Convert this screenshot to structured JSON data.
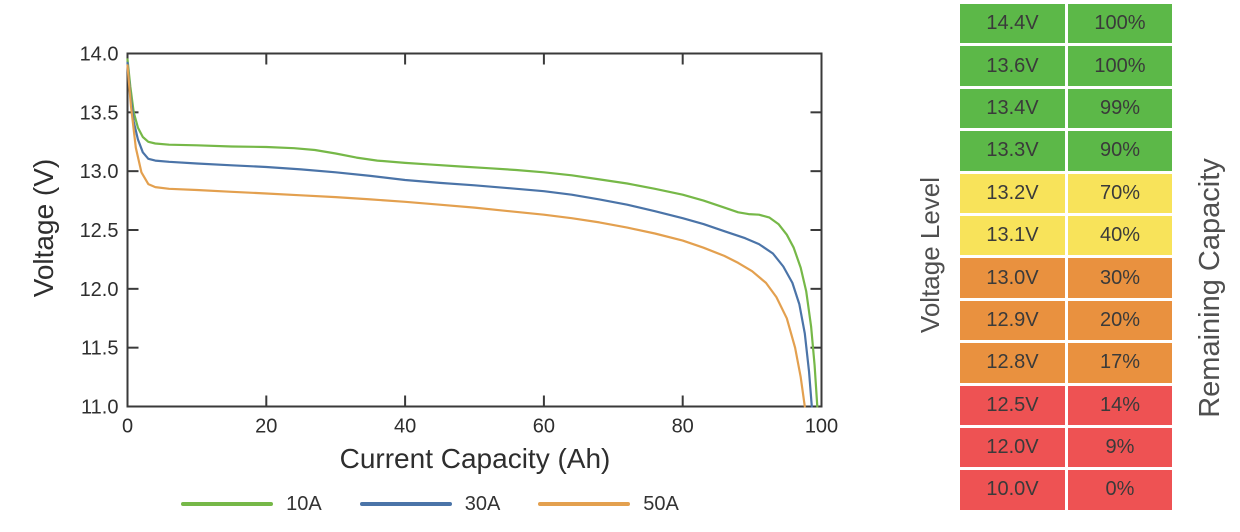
{
  "chart_data": {
    "type": "line",
    "title": "",
    "xlabel": "Current Capacity (Ah)",
    "ylabel": "Voltage (V)",
    "xlim": [
      0,
      100
    ],
    "ylim": [
      11.0,
      14.0
    ],
    "xticks": [
      0,
      20,
      40,
      60,
      80,
      100
    ],
    "xtick_labels": [
      "0",
      "20",
      "40",
      "60",
      "80",
      "100"
    ],
    "yticks": [
      14.0,
      13.5,
      13.0,
      12.5,
      12.0,
      11.5,
      11.0
    ],
    "ytick_labels": [
      "14.0",
      "13.5",
      "13.0",
      "12.5",
      "12.0",
      "11.5",
      "11.0"
    ],
    "grid": false,
    "legend_position": "bottom",
    "series": [
      {
        "name": "10A",
        "color": "#76b848",
        "points": [
          [
            0,
            13.95
          ],
          [
            0.4,
            13.72
          ],
          [
            0.9,
            13.5
          ],
          [
            1.5,
            13.37
          ],
          [
            2.2,
            13.29
          ],
          [
            3,
            13.25
          ],
          [
            4,
            13.235
          ],
          [
            6,
            13.225
          ],
          [
            10,
            13.22
          ],
          [
            15,
            13.21
          ],
          [
            20,
            13.205
          ],
          [
            24,
            13.195
          ],
          [
            27,
            13.18
          ],
          [
            30,
            13.15
          ],
          [
            33,
            13.115
          ],
          [
            36,
            13.09
          ],
          [
            40,
            13.07
          ],
          [
            44,
            13.055
          ],
          [
            48,
            13.04
          ],
          [
            52,
            13.025
          ],
          [
            56,
            13.01
          ],
          [
            60,
            12.99
          ],
          [
            64,
            12.965
          ],
          [
            68,
            12.93
          ],
          [
            72,
            12.895
          ],
          [
            76,
            12.85
          ],
          [
            80,
            12.8
          ],
          [
            83,
            12.75
          ],
          [
            86,
            12.69
          ],
          [
            88,
            12.65
          ],
          [
            89.5,
            12.635
          ],
          [
            91,
            12.63
          ],
          [
            92.5,
            12.605
          ],
          [
            93.8,
            12.55
          ],
          [
            95,
            12.46
          ],
          [
            96,
            12.35
          ],
          [
            97,
            12.18
          ],
          [
            97.8,
            11.98
          ],
          [
            98.5,
            11.68
          ],
          [
            99,
            11.35
          ],
          [
            99.4,
            11.0
          ]
        ]
      },
      {
        "name": "30A",
        "color": "#4b74a8",
        "points": [
          [
            0,
            13.92
          ],
          [
            0.4,
            13.65
          ],
          [
            0.9,
            13.42
          ],
          [
            1.5,
            13.27
          ],
          [
            2.2,
            13.16
          ],
          [
            3,
            13.105
          ],
          [
            4,
            13.09
          ],
          [
            6,
            13.08
          ],
          [
            10,
            13.065
          ],
          [
            15,
            13.05
          ],
          [
            20,
            13.035
          ],
          [
            25,
            13.015
          ],
          [
            30,
            12.99
          ],
          [
            35,
            12.96
          ],
          [
            40,
            12.925
          ],
          [
            45,
            12.9
          ],
          [
            50,
            12.88
          ],
          [
            55,
            12.855
          ],
          [
            60,
            12.83
          ],
          [
            64,
            12.8
          ],
          [
            68,
            12.76
          ],
          [
            72,
            12.715
          ],
          [
            76,
            12.66
          ],
          [
            80,
            12.6
          ],
          [
            83,
            12.55
          ],
          [
            86,
            12.49
          ],
          [
            89,
            12.43
          ],
          [
            91,
            12.38
          ],
          [
            93,
            12.3
          ],
          [
            94.5,
            12.19
          ],
          [
            95.8,
            12.05
          ],
          [
            96.8,
            11.87
          ],
          [
            97.6,
            11.62
          ],
          [
            98.2,
            11.3
          ],
          [
            98.6,
            11.0
          ]
        ]
      },
      {
        "name": "50A",
        "color": "#e3a04f",
        "points": [
          [
            0,
            13.9
          ],
          [
            0.5,
            13.55
          ],
          [
            1.2,
            13.2
          ],
          [
            2,
            12.99
          ],
          [
            3,
            12.89
          ],
          [
            4,
            12.865
          ],
          [
            6,
            12.85
          ],
          [
            10,
            12.84
          ],
          [
            15,
            12.825
          ],
          [
            20,
            12.81
          ],
          [
            25,
            12.795
          ],
          [
            30,
            12.78
          ],
          [
            35,
            12.76
          ],
          [
            40,
            12.74
          ],
          [
            45,
            12.715
          ],
          [
            50,
            12.69
          ],
          [
            55,
            12.66
          ],
          [
            60,
            12.63
          ],
          [
            64,
            12.6
          ],
          [
            68,
            12.565
          ],
          [
            72,
            12.52
          ],
          [
            76,
            12.47
          ],
          [
            80,
            12.41
          ],
          [
            83,
            12.35
          ],
          [
            86,
            12.28
          ],
          [
            88,
            12.22
          ],
          [
            90,
            12.15
          ],
          [
            92,
            12.05
          ],
          [
            93.5,
            11.93
          ],
          [
            95,
            11.75
          ],
          [
            96.2,
            11.5
          ],
          [
            97,
            11.25
          ],
          [
            97.6,
            11.0
          ]
        ]
      }
    ]
  },
  "table": {
    "left_label": "Voltage Level",
    "right_label": "Remaining Capacity",
    "status_colors": {
      "green": "#5cb848",
      "yellow": "#f8e35a",
      "orange": "#e9913f",
      "red": "#ee5253"
    },
    "rows": [
      {
        "voltage": "14.4V",
        "capacity": "100%",
        "status": "green"
      },
      {
        "voltage": "13.6V",
        "capacity": "100%",
        "status": "green"
      },
      {
        "voltage": "13.4V",
        "capacity": "99%",
        "status": "green"
      },
      {
        "voltage": "13.3V",
        "capacity": "90%",
        "status": "green"
      },
      {
        "voltage": "13.2V",
        "capacity": "70%",
        "status": "yellow"
      },
      {
        "voltage": "13.1V",
        "capacity": "40%",
        "status": "yellow"
      },
      {
        "voltage": "13.0V",
        "capacity": "30%",
        "status": "orange"
      },
      {
        "voltage": "12.9V",
        "capacity": "20%",
        "status": "orange"
      },
      {
        "voltage": "12.8V",
        "capacity": "17%",
        "status": "orange"
      },
      {
        "voltage": "12.5V",
        "capacity": "14%",
        "status": "red"
      },
      {
        "voltage": "12.0V",
        "capacity": "9%",
        "status": "red"
      },
      {
        "voltage": "10.0V",
        "capacity": "0%",
        "status": "red"
      }
    ]
  },
  "colors": {
    "spine": "#3a3a3a",
    "tick_text": "#2e2e2e",
    "table_text": "#3a3a3a"
  }
}
